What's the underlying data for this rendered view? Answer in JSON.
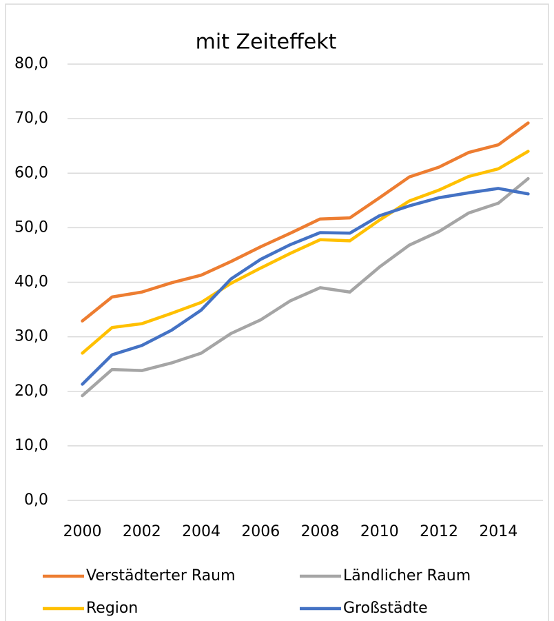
{
  "chart_data": {
    "type": "line",
    "title": "mit Zeiteffekt",
    "x": [
      2000,
      2001,
      2002,
      2003,
      2004,
      2005,
      2006,
      2007,
      2008,
      2009,
      2010,
      2011,
      2012,
      2013,
      2014,
      2015
    ],
    "xlim": [
      1999.5,
      2015.5
    ],
    "xticks": [
      2000,
      2002,
      2004,
      2006,
      2008,
      2010,
      2012,
      2014
    ],
    "ylim": [
      0,
      80
    ],
    "yticks": [
      {
        "value": 0,
        "label": "0,0"
      },
      {
        "value": 10,
        "label": "10,0"
      },
      {
        "value": 20,
        "label": "20,0"
      },
      {
        "value": 30,
        "label": "30,0"
      },
      {
        "value": 40,
        "label": "40,0"
      },
      {
        "value": 50,
        "label": "50,0"
      },
      {
        "value": 60,
        "label": "60,0"
      },
      {
        "value": 70,
        "label": "70,0"
      },
      {
        "value": 80,
        "label": "80,0"
      }
    ],
    "grid": true,
    "legend": "bottom",
    "series": [
      {
        "name": "Verstädterter Raum",
        "color": "#ED7D31",
        "values": [
          32.9,
          37.3,
          38.2,
          39.9,
          41.3,
          43.8,
          46.5,
          49.0,
          51.6,
          51.8,
          55.5,
          59.3,
          61.1,
          63.8,
          65.2,
          69.2
        ]
      },
      {
        "name": "Ländlicher Raum",
        "color": "#A5A5A5",
        "values": [
          19.2,
          24.0,
          23.8,
          25.2,
          27.0,
          30.6,
          33.1,
          36.6,
          39.0,
          38.2,
          42.8,
          46.8,
          49.3,
          52.7,
          54.5,
          59.0
        ]
      },
      {
        "name": "Region",
        "color": "#FFC000",
        "values": [
          27.0,
          31.7,
          32.4,
          34.3,
          36.3,
          39.8,
          42.6,
          45.3,
          47.8,
          47.6,
          51.4,
          54.9,
          56.9,
          59.4,
          60.8,
          64.0
        ]
      },
      {
        "name": "Großstädte",
        "color": "#4472C4",
        "values": [
          21.3,
          26.7,
          28.4,
          31.2,
          34.9,
          40.6,
          44.2,
          46.9,
          49.1,
          49.0,
          52.2,
          54.0,
          55.5,
          56.4,
          57.2,
          56.2
        ]
      }
    ]
  }
}
